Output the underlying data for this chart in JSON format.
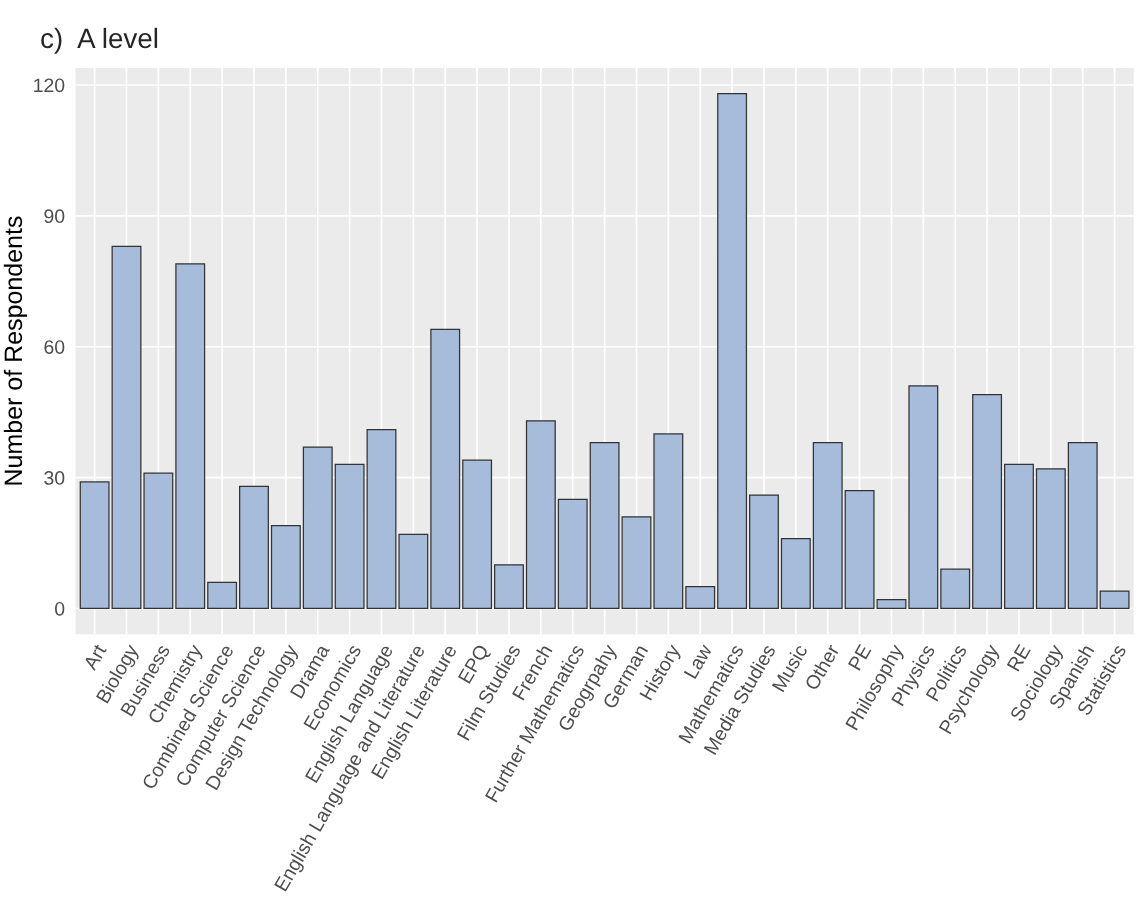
{
  "chart_data": {
    "type": "bar",
    "title": "c)  A level",
    "ylabel": "Number of Respondents",
    "categories": [
      "Art",
      "Biology",
      "Business",
      "Chemistry",
      "Combined Science",
      "Computer Science",
      "Design Technology",
      "Drama",
      "Economics",
      "English Language",
      "English Language and Literature",
      "English Literature",
      "EPQ",
      "Film Studies",
      "French",
      "Further Mathematics",
      "Geogrpahy",
      "German",
      "History",
      "Law",
      "Mathematics",
      "Media Studies",
      "Music",
      "Other",
      "PE",
      "Philosophy",
      "Physics",
      "Politics",
      "Psychology",
      "RE",
      "Sociology",
      "Spanish",
      "Statistics"
    ],
    "values": [
      29,
      83,
      31,
      79,
      6,
      28,
      19,
      37,
      33,
      41,
      17,
      64,
      34,
      10,
      43,
      25,
      38,
      21,
      40,
      5,
      118,
      26,
      16,
      38,
      27,
      2,
      51,
      9,
      49,
      33,
      32,
      38,
      4
    ],
    "color": "#a7bbdb",
    "ylim": [
      -5.9,
      123.9
    ],
    "yticks": [
      0,
      30,
      60,
      90,
      120
    ],
    "grid": true
  }
}
